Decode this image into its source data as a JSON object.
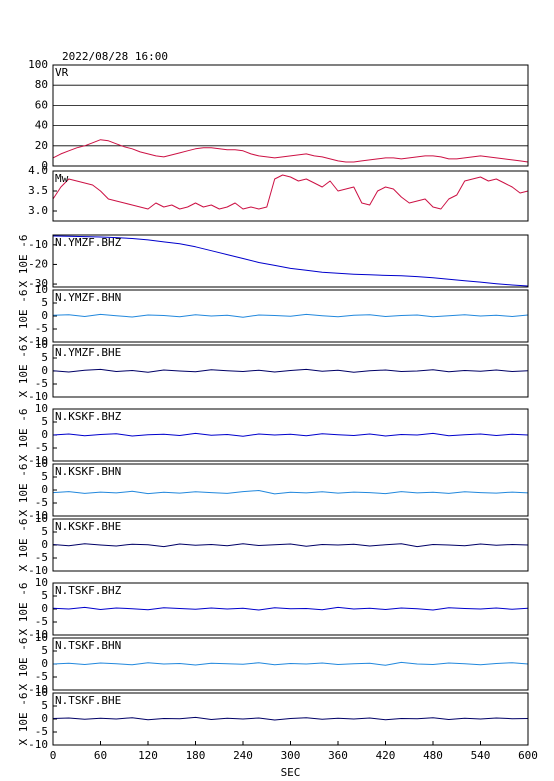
{
  "chart_data": [
    {
      "type": "line",
      "title": "2022/08/28 16:00",
      "label": "VR",
      "color": "#cc1144",
      "grid": true,
      "xlim": [
        0,
        600
      ],
      "ylim": [
        0,
        100
      ],
      "yticks": [
        0,
        20,
        40,
        60,
        80,
        100
      ],
      "x": [
        0,
        10,
        20,
        30,
        40,
        50,
        60,
        70,
        80,
        90,
        100,
        110,
        120,
        130,
        140,
        150,
        160,
        170,
        180,
        190,
        200,
        210,
        220,
        230,
        240,
        250,
        260,
        270,
        280,
        290,
        300,
        310,
        320,
        330,
        340,
        350,
        360,
        370,
        380,
        390,
        400,
        410,
        420,
        430,
        440,
        450,
        460,
        470,
        480,
        490,
        500,
        510,
        520,
        530,
        540,
        550,
        560,
        570,
        580,
        590,
        600
      ],
      "values": [
        8,
        12,
        15,
        18,
        20,
        23,
        26,
        25,
        22,
        19,
        17,
        14,
        12,
        10,
        9,
        11,
        13,
        15,
        17,
        18,
        18,
        17,
        16,
        16,
        15,
        12,
        10,
        9,
        8,
        9,
        10,
        11,
        12,
        10,
        9,
        7,
        5,
        4,
        4,
        5,
        6,
        7,
        8,
        8,
        7,
        8,
        9,
        10,
        10,
        9,
        7,
        7,
        8,
        9,
        10,
        9,
        8,
        7,
        6,
        5,
        4
      ]
    },
    {
      "type": "line",
      "label": "Mw",
      "color": "#cc1144",
      "grid": false,
      "xlim": [
        0,
        600
      ],
      "ylim": [
        2.75,
        4.0
      ],
      "yticks": [
        {
          "value": 3.0,
          "label": "3.0"
        },
        {
          "value": 3.5,
          "label": "3.5"
        },
        {
          "value": 4.0,
          "label": "4.0"
        }
      ],
      "x": [
        0,
        10,
        20,
        30,
        40,
        50,
        60,
        70,
        80,
        90,
        100,
        110,
        120,
        130,
        140,
        150,
        160,
        170,
        180,
        190,
        200,
        210,
        220,
        230,
        240,
        250,
        260,
        270,
        280,
        290,
        300,
        310,
        320,
        330,
        340,
        350,
        360,
        370,
        380,
        390,
        400,
        410,
        420,
        430,
        440,
        450,
        460,
        470,
        480,
        490,
        500,
        510,
        520,
        530,
        540,
        550,
        560,
        570,
        580,
        590,
        600
      ],
      "values": [
        3.3,
        3.6,
        3.8,
        3.75,
        3.7,
        3.65,
        3.5,
        3.3,
        3.25,
        3.2,
        3.15,
        3.1,
        3.05,
        3.2,
        3.1,
        3.15,
        3.05,
        3.1,
        3.2,
        3.1,
        3.15,
        3.05,
        3.1,
        3.2,
        3.05,
        3.1,
        3.05,
        3.1,
        3.8,
        3.9,
        3.85,
        3.75,
        3.8,
        3.7,
        3.6,
        3.75,
        3.5,
        3.55,
        3.6,
        3.2,
        3.15,
        3.5,
        3.6,
        3.55,
        3.35,
        3.2,
        3.25,
        3.3,
        3.1,
        3.05,
        3.3,
        3.4,
        3.75,
        3.8,
        3.85,
        3.75,
        3.8,
        3.7,
        3.6,
        3.45,
        3.5
      ]
    },
    {
      "type": "line",
      "label": "N.YMZF.BHZ",
      "ylabel": "X 10E -6",
      "color": "#0000cc",
      "xlim": [
        0,
        600
      ],
      "ylim": [
        -31.5,
        -5
      ],
      "yticks": [
        -10,
        -20,
        -30
      ],
      "x": [
        0,
        20,
        40,
        60,
        80,
        100,
        120,
        140,
        160,
        180,
        200,
        220,
        240,
        260,
        280,
        300,
        320,
        340,
        360,
        380,
        400,
        420,
        440,
        460,
        480,
        500,
        520,
        540,
        560,
        580,
        600
      ],
      "values": [
        -5.5,
        -5.6,
        -5.8,
        -6,
        -6.3,
        -6.8,
        -7.5,
        -8.5,
        -9.5,
        -11,
        -13,
        -15,
        -17,
        -19,
        -20.5,
        -22,
        -23,
        -24,
        -24.5,
        -25,
        -25.3,
        -25.6,
        -25.8,
        -26.2,
        -26.8,
        -27.5,
        -28.3,
        -29,
        -29.8,
        -30.5,
        -31
      ]
    },
    {
      "type": "line",
      "label": "N.YMZF.BHN",
      "ylabel": "X 10E -6",
      "color": "#2288dd",
      "xlim": [
        0,
        600
      ],
      "ylim": [
        -10,
        10
      ],
      "yticks": [
        10,
        5,
        0,
        -5,
        -10
      ],
      "x": [
        0,
        20,
        40,
        60,
        80,
        100,
        120,
        140,
        160,
        180,
        200,
        220,
        240,
        260,
        280,
        300,
        320,
        340,
        360,
        380,
        400,
        420,
        440,
        460,
        480,
        500,
        520,
        540,
        560,
        580,
        600
      ],
      "values": [
        0.3,
        0.5,
        -0.2,
        0.6,
        0.1,
        -0.4,
        0.4,
        0.2,
        -0.3,
        0.5,
        0.0,
        0.3,
        -0.5,
        0.4,
        0.2,
        -0.1,
        0.6,
        0.1,
        -0.3,
        0.3,
        0.5,
        -0.2,
        0.2,
        0.4,
        -0.3,
        0.1,
        0.5,
        0.0,
        0.3,
        -0.2,
        0.4
      ]
    },
    {
      "type": "line",
      "label": "N.YMZF.BHE",
      "ylabel": "X 10E -6",
      "color": "#000066",
      "xlim": [
        0,
        600
      ],
      "ylim": [
        -10,
        10
      ],
      "yticks": [
        10,
        5,
        0,
        -5,
        -10
      ],
      "x": [
        0,
        20,
        40,
        60,
        80,
        100,
        120,
        140,
        160,
        180,
        200,
        220,
        240,
        260,
        280,
        300,
        320,
        340,
        360,
        380,
        400,
        420,
        440,
        460,
        480,
        500,
        520,
        540,
        560,
        580,
        600
      ],
      "values": [
        0.1,
        -0.4,
        0.3,
        0.6,
        -0.2,
        0.2,
        -0.5,
        0.4,
        0.0,
        -0.3,
        0.5,
        0.1,
        -0.2,
        0.3,
        -0.4,
        0.2,
        0.6,
        -0.1,
        0.3,
        -0.5,
        0.1,
        0.4,
        -0.2,
        0.0,
        0.5,
        -0.3,
        0.2,
        -0.1,
        0.4,
        -0.2,
        0.1
      ]
    },
    {
      "type": "line",
      "label": "N.KSKF.BHZ",
      "ylabel": "X 10E -6",
      "color": "#0000cc",
      "xlim": [
        0,
        600
      ],
      "ylim": [
        -10,
        10
      ],
      "yticks": [
        10,
        5,
        0,
        -5,
        -10
      ],
      "x": [
        0,
        20,
        40,
        60,
        80,
        100,
        120,
        140,
        160,
        180,
        200,
        220,
        240,
        260,
        280,
        300,
        320,
        340,
        360,
        380,
        400,
        420,
        440,
        460,
        480,
        500,
        520,
        540,
        560,
        580,
        600
      ],
      "values": [
        0.0,
        0.4,
        -0.3,
        0.2,
        0.5,
        -0.4,
        0.1,
        0.3,
        -0.2,
        0.6,
        -0.1,
        0.2,
        -0.5,
        0.4,
        0.0,
        0.3,
        -0.3,
        0.5,
        0.1,
        -0.2,
        0.4,
        -0.4,
        0.2,
        0.0,
        0.6,
        -0.3,
        0.1,
        0.4,
        -0.2,
        0.3,
        0.0
      ]
    },
    {
      "type": "line",
      "label": "N.KSKF.BHN",
      "ylabel": "X 10E -6",
      "color": "#2288dd",
      "xlim": [
        0,
        600
      ],
      "ylim": [
        -10,
        10
      ],
      "yticks": [
        10,
        5,
        0,
        -5,
        -10
      ],
      "x": [
        0,
        20,
        40,
        60,
        80,
        100,
        120,
        140,
        160,
        180,
        200,
        220,
        240,
        260,
        280,
        300,
        320,
        340,
        360,
        380,
        400,
        420,
        440,
        460,
        480,
        500,
        520,
        540,
        560,
        580,
        600
      ],
      "values": [
        -1.0,
        -0.6,
        -1.3,
        -0.8,
        -1.1,
        -0.5,
        -1.4,
        -0.9,
        -1.2,
        -0.7,
        -1.0,
        -1.3,
        -0.6,
        -0.2,
        -1.5,
        -0.9,
        -1.1,
        -0.7,
        -1.2,
        -0.8,
        -1.0,
        -1.4,
        -0.6,
        -1.1,
        -0.9,
        -1.3,
        -0.7,
        -1.0,
        -1.2,
        -0.8,
        -1.1
      ]
    },
    {
      "type": "line",
      "label": "N.KSKF.BHE",
      "ylabel": "X 10E -6",
      "color": "#000066",
      "xlim": [
        0,
        600
      ],
      "ylim": [
        -10,
        10
      ],
      "yticks": [
        10,
        5,
        0,
        -5,
        -10
      ],
      "x": [
        0,
        20,
        40,
        60,
        80,
        100,
        120,
        140,
        160,
        180,
        200,
        220,
        240,
        260,
        280,
        300,
        320,
        340,
        360,
        380,
        400,
        420,
        440,
        460,
        480,
        500,
        520,
        540,
        560,
        580,
        600
      ],
      "values": [
        0.2,
        -0.3,
        0.5,
        0.0,
        -0.4,
        0.3,
        0.1,
        -0.6,
        0.4,
        -0.1,
        0.2,
        -0.3,
        0.5,
        -0.2,
        0.1,
        0.4,
        -0.5,
        0.2,
        0.0,
        0.3,
        -0.4,
        0.1,
        0.5,
        -0.6,
        0.2,
        0.0,
        -0.3,
        0.4,
        -0.1,
        0.2,
        0.0
      ]
    },
    {
      "type": "line",
      "label": "N.TSKF.BHZ",
      "ylabel": "X 10E -6",
      "color": "#0000cc",
      "xlim": [
        0,
        600
      ],
      "ylim": [
        -10,
        10
      ],
      "yticks": [
        10,
        5,
        0,
        -5,
        -10
      ],
      "x": [
        0,
        20,
        40,
        60,
        80,
        100,
        120,
        140,
        160,
        180,
        200,
        220,
        240,
        260,
        280,
        300,
        320,
        340,
        360,
        380,
        400,
        420,
        440,
        460,
        480,
        500,
        520,
        540,
        560,
        580,
        600
      ],
      "values": [
        0.3,
        0.0,
        0.6,
        -0.2,
        0.4,
        0.1,
        -0.3,
        0.5,
        0.2,
        -0.1,
        0.4,
        0.0,
        0.3,
        -0.4,
        0.5,
        0.1,
        0.2,
        -0.3,
        0.6,
        0.0,
        0.3,
        -0.2,
        0.4,
        0.1,
        -0.4,
        0.5,
        0.2,
        0.0,
        0.4,
        -0.1,
        0.3
      ]
    },
    {
      "type": "line",
      "label": "N.TSKF.BHN",
      "ylabel": "X 10E -6",
      "color": "#2288dd",
      "xlim": [
        0,
        600
      ],
      "ylim": [
        -10,
        10
      ],
      "yticks": [
        10,
        5,
        0,
        -5,
        -10
      ],
      "x": [
        0,
        20,
        40,
        60,
        80,
        100,
        120,
        140,
        160,
        180,
        200,
        220,
        240,
        260,
        280,
        300,
        320,
        340,
        360,
        380,
        400,
        420,
        440,
        460,
        480,
        500,
        520,
        540,
        560,
        580,
        600
      ],
      "values": [
        0.0,
        0.3,
        -0.2,
        0.4,
        0.1,
        -0.3,
        0.5,
        0.0,
        0.2,
        -0.4,
        0.3,
        0.1,
        -0.1,
        0.5,
        -0.3,
        0.2,
        0.0,
        0.4,
        -0.2,
        0.1,
        0.3,
        -0.5,
        0.6,
        0.0,
        -0.2,
        0.4,
        0.1,
        -0.3,
        0.2,
        0.5,
        0.0
      ]
    },
    {
      "type": "line",
      "label": "N.TSKF.BHE",
      "ylabel": "X 10E -6",
      "color": "#000066",
      "xlim": [
        0,
        600
      ],
      "ylim": [
        -10,
        10
      ],
      "yticks": [
        10,
        5,
        0,
        -5,
        -10
      ],
      "x": [
        0,
        20,
        40,
        60,
        80,
        100,
        120,
        140,
        160,
        180,
        200,
        220,
        240,
        260,
        280,
        300,
        320,
        340,
        360,
        380,
        400,
        420,
        440,
        460,
        480,
        500,
        520,
        540,
        560,
        580,
        600
      ],
      "values": [
        0.2,
        0.4,
        -0.1,
        0.3,
        0.0,
        0.5,
        -0.3,
        0.2,
        0.1,
        0.6,
        -0.2,
        0.3,
        0.0,
        0.4,
        -0.4,
        0.2,
        0.5,
        -0.1,
        0.3,
        0.0,
        0.4,
        -0.3,
        0.2,
        0.1,
        0.5,
        -0.2,
        0.3,
        0.0,
        0.4,
        0.1,
        0.2
      ],
      "xlabel": "SEC",
      "xticks": [
        0,
        60,
        120,
        180,
        240,
        300,
        360,
        420,
        480,
        540,
        600
      ]
    }
  ]
}
